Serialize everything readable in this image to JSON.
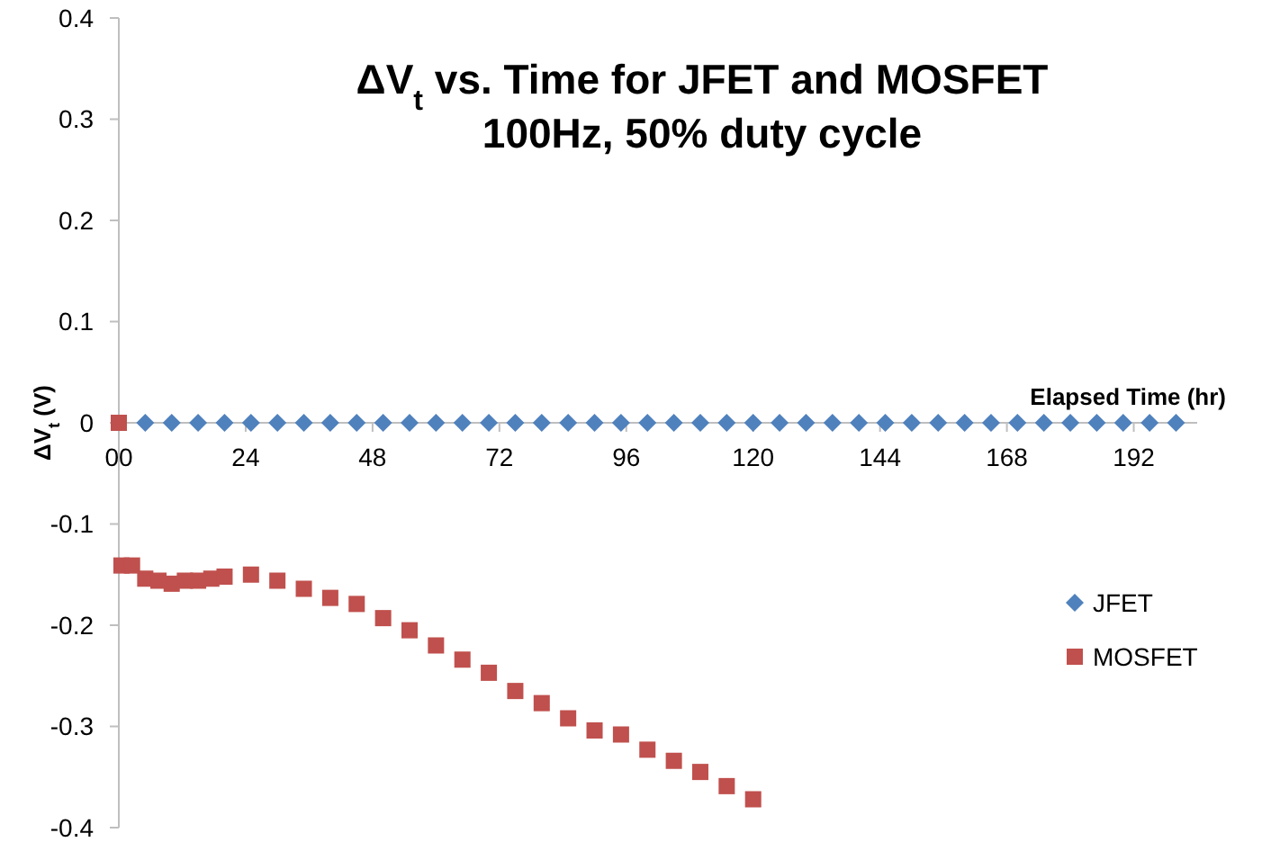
{
  "chart_data": {
    "type": "scatter",
    "title": "ΔV$_{t}$ vs. Time for JFET and MOSFET",
    "subtitle": "100Hz, 50% duty cycle",
    "xlabel": "Elapsed Time (hr)",
    "ylabel": "ΔV$_{t}$ (V)",
    "xlim": [
      0,
      204
    ],
    "xticks": [
      {
        "value": 0,
        "label": "00"
      },
      24,
      48,
      72,
      96,
      120,
      144,
      168,
      192
    ],
    "ylim": [
      -0.4,
      0.4
    ],
    "yticks": [
      -0.4,
      -0.3,
      -0.2,
      -0.1,
      0,
      0.1,
      0.2,
      0.3,
      0.4
    ],
    "grid": false,
    "legend": "right",
    "series": [
      {
        "name": "JFET",
        "color": "#4f81bd",
        "marker": "diamond",
        "x": [
          5,
          10,
          15,
          20,
          25,
          30,
          35,
          40,
          45,
          50,
          55,
          60,
          65,
          70,
          75,
          80,
          85,
          90,
          95,
          100,
          105,
          110,
          115,
          120,
          125,
          130,
          135,
          140,
          145,
          150,
          155,
          160,
          165,
          170,
          175,
          180,
          185,
          190,
          195,
          200
        ],
        "values": [
          0,
          0,
          0,
          0,
          0,
          0,
          0,
          0,
          0,
          0,
          0,
          0,
          0,
          0,
          0,
          0,
          0,
          0,
          0,
          0,
          0,
          0,
          0,
          0,
          0,
          0,
          0,
          0,
          0,
          0,
          0,
          0,
          0,
          0,
          0,
          0,
          0,
          0,
          0,
          0
        ]
      },
      {
        "name": "MOSFET",
        "color": "#c0504d",
        "marker": "square",
        "x": [
          0,
          0.5,
          2.5,
          5,
          7.5,
          10,
          12.5,
          15,
          17.5,
          20,
          25,
          30,
          35,
          40,
          45,
          50,
          55,
          60,
          65,
          70,
          75,
          80,
          85,
          90,
          95,
          100,
          105,
          110,
          115,
          120
        ],
        "values": [
          0,
          -0.141,
          -0.141,
          -0.154,
          -0.156,
          -0.159,
          -0.156,
          -0.156,
          -0.154,
          -0.152,
          -0.15,
          -0.156,
          -0.164,
          -0.173,
          -0.179,
          -0.193,
          -0.205,
          -0.22,
          -0.234,
          -0.247,
          -0.265,
          -0.277,
          -0.292,
          -0.304,
          -0.308,
          -0.323,
          -0.334,
          -0.345,
          -0.359,
          -0.372
        ]
      }
    ]
  }
}
